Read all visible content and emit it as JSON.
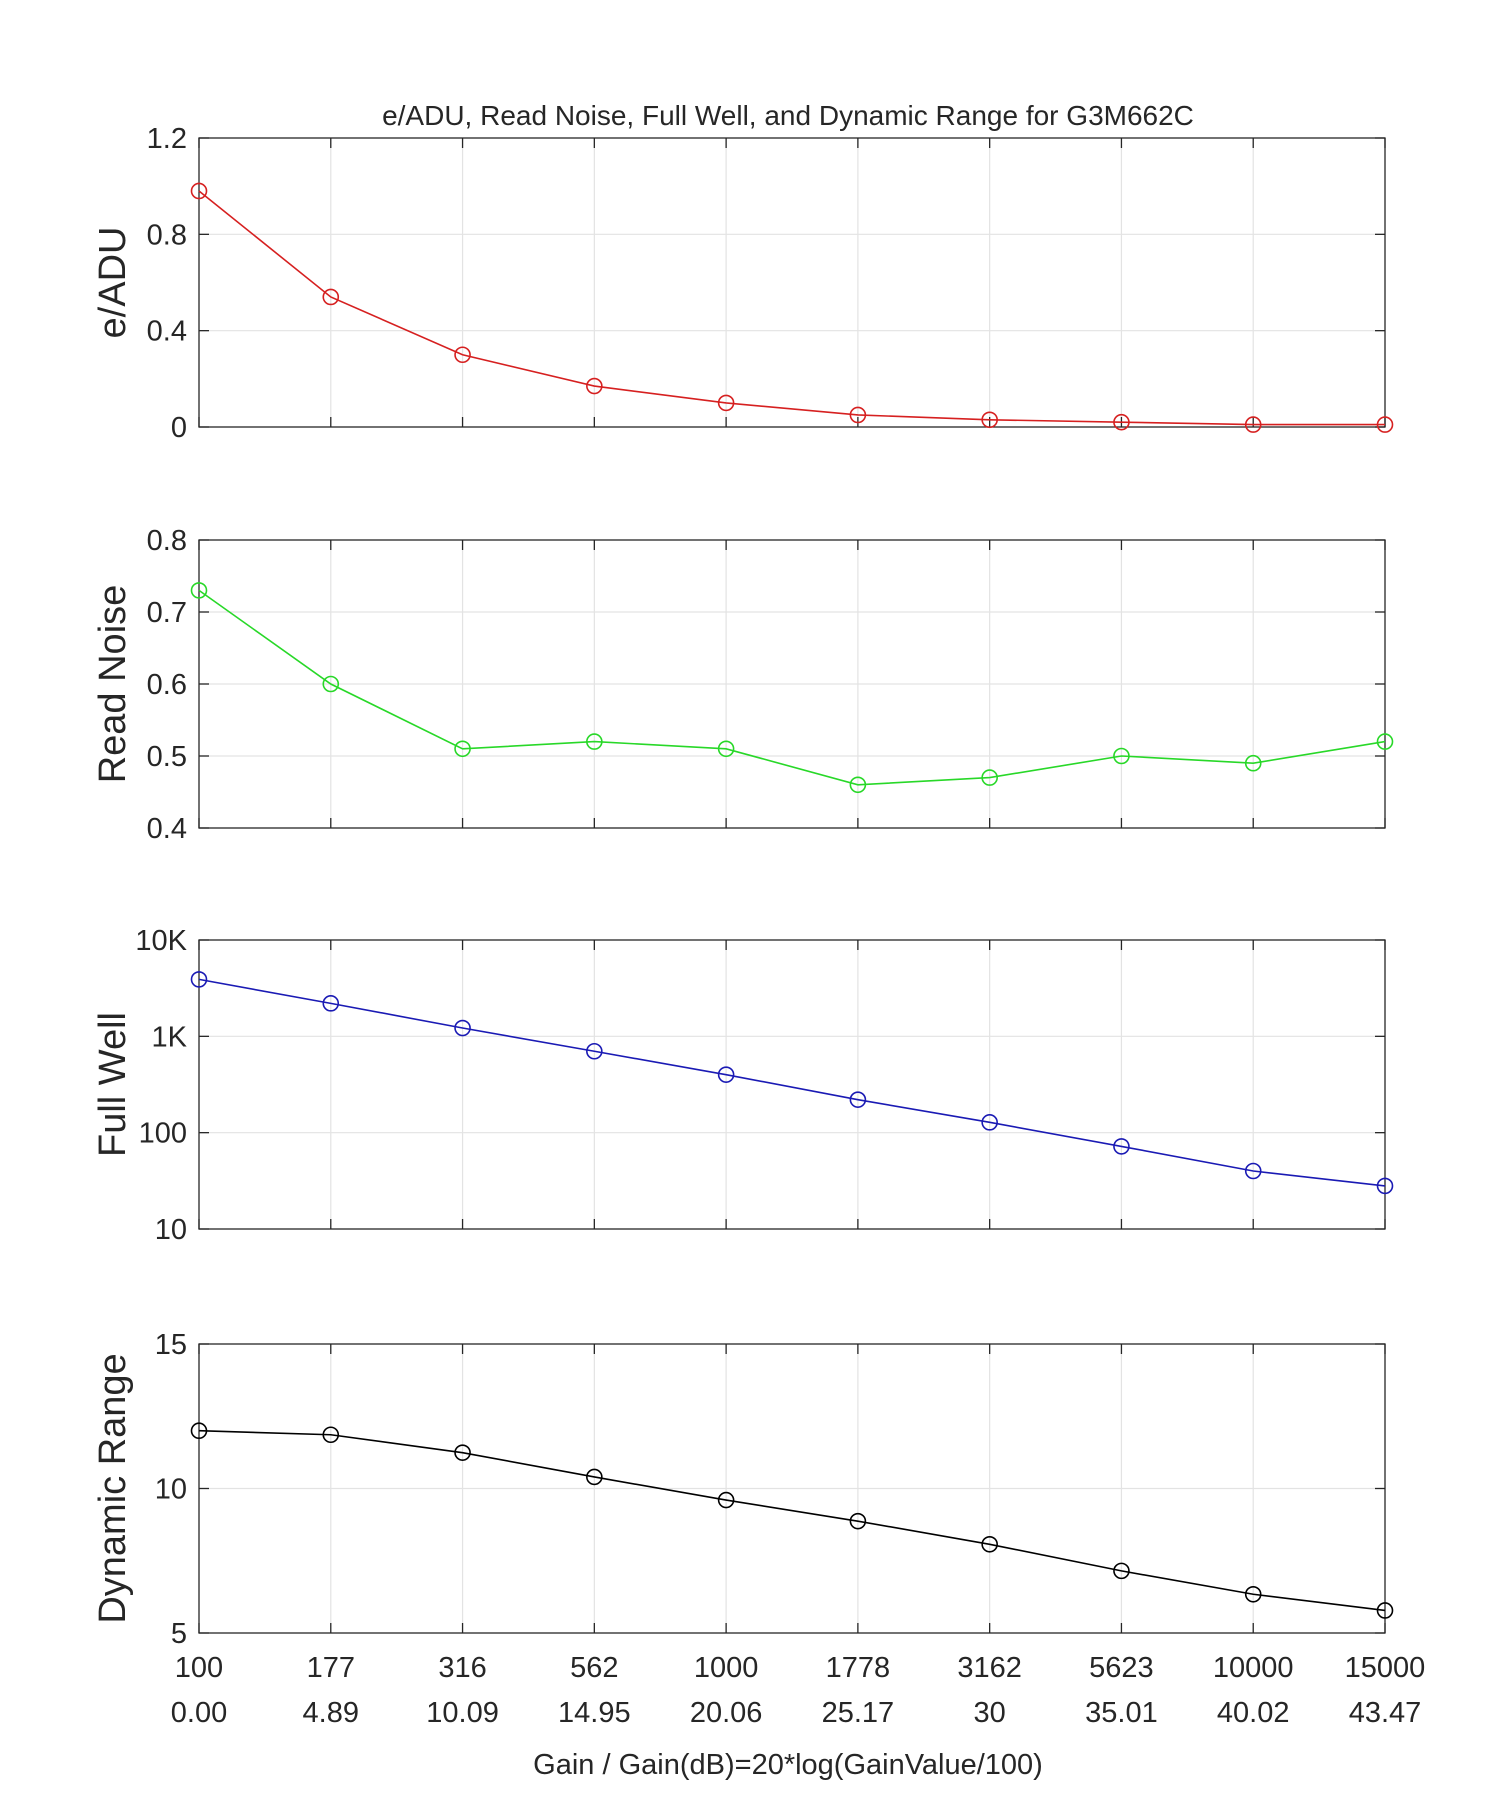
{
  "figure": {
    "title": "e/ADU, Read Noise, Full Well, and Dynamic Range for G3M662C",
    "xlabel": "Gain / Gain(dB)=20*log(GainValue/100)"
  },
  "chart_data": [
    {
      "type": "line",
      "ylabel": "e/ADU",
      "color": "#d62020",
      "yscale": "linear",
      "ylim": [
        0,
        1.2
      ],
      "yticks": [
        0,
        0.4,
        0.8,
        1.2
      ],
      "ytick_labels": [
        "0",
        "0.4",
        "0.8",
        "1.2"
      ],
      "x": [
        100,
        177,
        316,
        562,
        1000,
        1778,
        3162,
        5623,
        10000,
        15000
      ],
      "values": [
        0.98,
        0.54,
        0.3,
        0.17,
        0.1,
        0.05,
        0.03,
        0.02,
        0.01,
        0.01
      ],
      "marker": "circle",
      "grid": true
    },
    {
      "type": "line",
      "ylabel": "Read Noise",
      "color": "#28d828",
      "yscale": "linear",
      "ylim": [
        0.4,
        0.8
      ],
      "yticks": [
        0.4,
        0.5,
        0.6,
        0.7,
        0.8
      ],
      "ytick_labels": [
        "0.4",
        "0.5",
        "0.6",
        "0.7",
        "0.8"
      ],
      "x": [
        100,
        177,
        316,
        562,
        1000,
        1778,
        3162,
        5623,
        10000,
        15000
      ],
      "values": [
        0.73,
        0.6,
        0.51,
        0.52,
        0.51,
        0.46,
        0.47,
        0.5,
        0.49,
        0.52
      ],
      "marker": "circle",
      "grid": true
    },
    {
      "type": "line",
      "ylabel": "Full Well",
      "color": "#1a1ab4",
      "yscale": "log",
      "ylim": [
        10,
        10000
      ],
      "yticks": [
        10,
        100,
        1000,
        10000
      ],
      "ytick_labels": [
        "10",
        "100",
        "1K",
        "10K"
      ],
      "x": [
        100,
        177,
        316,
        562,
        1000,
        1778,
        3162,
        5623,
        10000,
        15000
      ],
      "values": [
        3900,
        2200,
        1220,
        700,
        400,
        220,
        128,
        72,
        40,
        28
      ],
      "marker": "circle",
      "grid": true
    },
    {
      "type": "line",
      "ylabel": "Dynamic Range",
      "color": "#000000",
      "yscale": "linear",
      "ylim": [
        5,
        15
      ],
      "yticks": [
        5,
        10,
        15
      ],
      "ytick_labels": [
        "5",
        "10",
        "15"
      ],
      "x": [
        100,
        177,
        316,
        562,
        1000,
        1778,
        3162,
        5623,
        10000,
        15000
      ],
      "values": [
        12.0,
        11.86,
        11.24,
        10.4,
        9.6,
        8.87,
        8.07,
        7.15,
        6.34,
        5.78
      ],
      "marker": "circle",
      "grid": true
    }
  ],
  "xaxis": {
    "gain_labels": [
      "100",
      "177",
      "316",
      "562",
      "1000",
      "1778",
      "3162",
      "5623",
      "10000",
      "15000"
    ],
    "db_labels": [
      "0.00",
      "4.89",
      "10.09",
      "14.95",
      "20.06",
      "25.17",
      "30",
      "35.01",
      "40.02",
      "43.47"
    ]
  }
}
